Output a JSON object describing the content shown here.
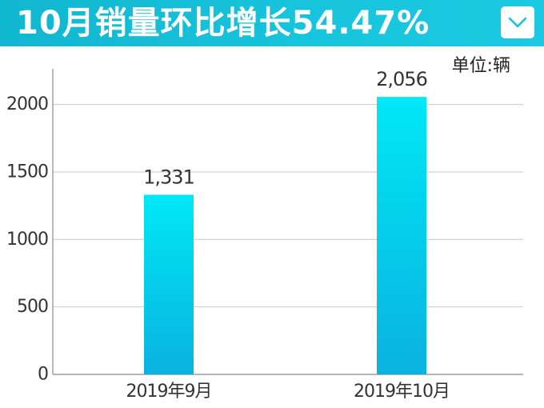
{
  "header": {
    "title": "10月销量环比增长54.47%",
    "dropdown_icon": "chevron-down-icon",
    "background_color": "#17c4dc"
  },
  "unit_label": "单位:辆",
  "chart_data": {
    "type": "bar",
    "title": "10月销量环比增长54.47%",
    "categories": [
      "2019年9月",
      "2019年10月"
    ],
    "values": [
      1331,
      2056
    ],
    "value_labels": [
      "1,331",
      "2,056"
    ],
    "yticks": [
      0,
      500,
      1000,
      1500,
      2000
    ],
    "ylim": [
      0,
      2300
    ],
    "grid": true,
    "bar_gradient": [
      "#00e8f6",
      "#0ab2e0"
    ],
    "xlabel": "",
    "ylabel": ""
  }
}
